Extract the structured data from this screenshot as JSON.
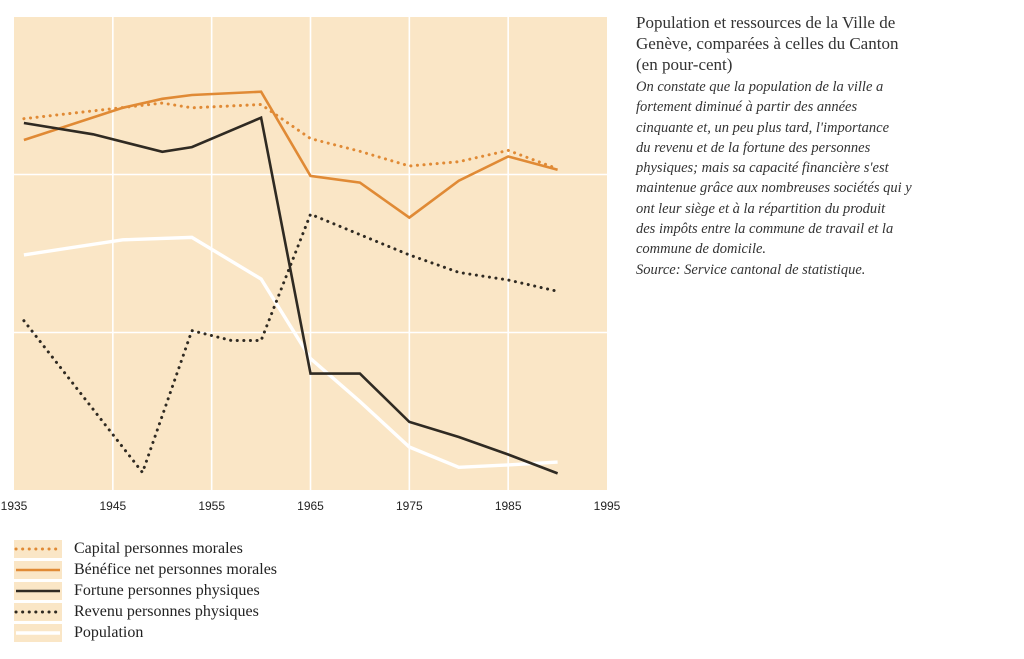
{
  "caption": {
    "title_lines": [
      "Population et ressources de la Ville de",
      "Genève, comparées à celles du Canton",
      "(en pour-cent)"
    ],
    "description_lines": [
      "On constate que la population de la ville a",
      "fortement diminué à partir des années",
      "cinquante et, un peu plus tard, l'importance",
      "du revenu et de la fortune des personnes",
      "physiques; mais sa capacité financière s'est",
      "maintenue grâce aux nombreuses sociétés qui y",
      "ont leur siège et à la répartition du produit",
      "des impôts entre la commune de travail et la",
      "commune de domicile.",
      "Source: Service cantonal de statistique."
    ]
  },
  "colors": {
    "plot_background": "#fae6c6",
    "grid": "#ffffff",
    "orange": "#e08a35",
    "dark": "#2f2a22",
    "population": "#ffffff"
  },
  "legend": [
    {
      "label": "Capital personnes morales",
      "series": "capital"
    },
    {
      "label": "Bénéfice net personnes morales",
      "series": "benefice"
    },
    {
      "label": "Fortune personnes physiques",
      "series": "fortune"
    },
    {
      "label": "Revenu personnes physiques",
      "series": "revenu"
    },
    {
      "label": "Population",
      "series": "population"
    }
  ],
  "chart_data": {
    "type": "line",
    "title": "",
    "xlabel": "",
    "ylabel": "",
    "xlim": [
      1935,
      1995
    ],
    "ylim": [
      0,
      100
    ],
    "x_ticks": [
      1935,
      1945,
      1955,
      1965,
      1975,
      1985,
      1995
    ],
    "y_gridlines": [
      0,
      33.3,
      66.7,
      100
    ],
    "grid": true,
    "y_tick_labels_shown": false,
    "series": [
      {
        "id": "capital",
        "name": "Capital personnes morales",
        "style": "dotted",
        "color": "#e08a35",
        "points": [
          [
            1936,
            78.5
          ],
          [
            1950,
            81.8
          ],
          [
            1953,
            80.8
          ],
          [
            1960,
            81.5
          ],
          [
            1965,
            74.3
          ],
          [
            1970,
            71.6
          ],
          [
            1975,
            68.5
          ],
          [
            1980,
            69.4
          ],
          [
            1985,
            71.8
          ],
          [
            1990,
            67.9
          ]
        ]
      },
      {
        "id": "benefice",
        "name": "Bénéfice net personnes morales",
        "style": "solid",
        "color": "#e08a35",
        "points": [
          [
            1936,
            74.0
          ],
          [
            1946,
            80.8
          ],
          [
            1950,
            82.7
          ],
          [
            1953,
            83.5
          ],
          [
            1960,
            84.2
          ],
          [
            1965,
            66.4
          ],
          [
            1970,
            65.0
          ],
          [
            1975,
            57.6
          ],
          [
            1980,
            65.4
          ],
          [
            1985,
            70.5
          ],
          [
            1990,
            67.7
          ]
        ]
      },
      {
        "id": "fortune",
        "name": "Fortune personnes physiques",
        "style": "solid",
        "color": "#2f2a22",
        "points": [
          [
            1936,
            77.6
          ],
          [
            1943,
            75.2
          ],
          [
            1950,
            71.5
          ],
          [
            1953,
            72.5
          ],
          [
            1960,
            78.7
          ],
          [
            1965,
            24.6
          ],
          [
            1970,
            24.6
          ],
          [
            1975,
            14.4
          ],
          [
            1980,
            11.2
          ],
          [
            1985,
            7.5
          ],
          [
            1990,
            3.5
          ]
        ]
      },
      {
        "id": "revenu",
        "name": "Revenu personnes physiques",
        "style": "dotted",
        "color": "#2f2a22",
        "points": [
          [
            1936,
            35.8
          ],
          [
            1948,
            3.7
          ],
          [
            1953,
            33.7
          ],
          [
            1957,
            31.6
          ],
          [
            1960,
            31.6
          ],
          [
            1965,
            58.3
          ],
          [
            1970,
            54.0
          ],
          [
            1975,
            49.7
          ],
          [
            1980,
            46.0
          ],
          [
            1985,
            44.4
          ],
          [
            1990,
            42.0
          ]
        ]
      },
      {
        "id": "population",
        "name": "Population",
        "style": "solid",
        "color": "#ffffff",
        "points": [
          [
            1936,
            49.7
          ],
          [
            1946,
            52.9
          ],
          [
            1953,
            53.4
          ],
          [
            1960,
            44.6
          ],
          [
            1965,
            27.8
          ],
          [
            1970,
            18.7
          ],
          [
            1975,
            9.1
          ],
          [
            1980,
            4.8
          ],
          [
            1985,
            5.3
          ],
          [
            1990,
            5.9
          ]
        ]
      }
    ]
  }
}
